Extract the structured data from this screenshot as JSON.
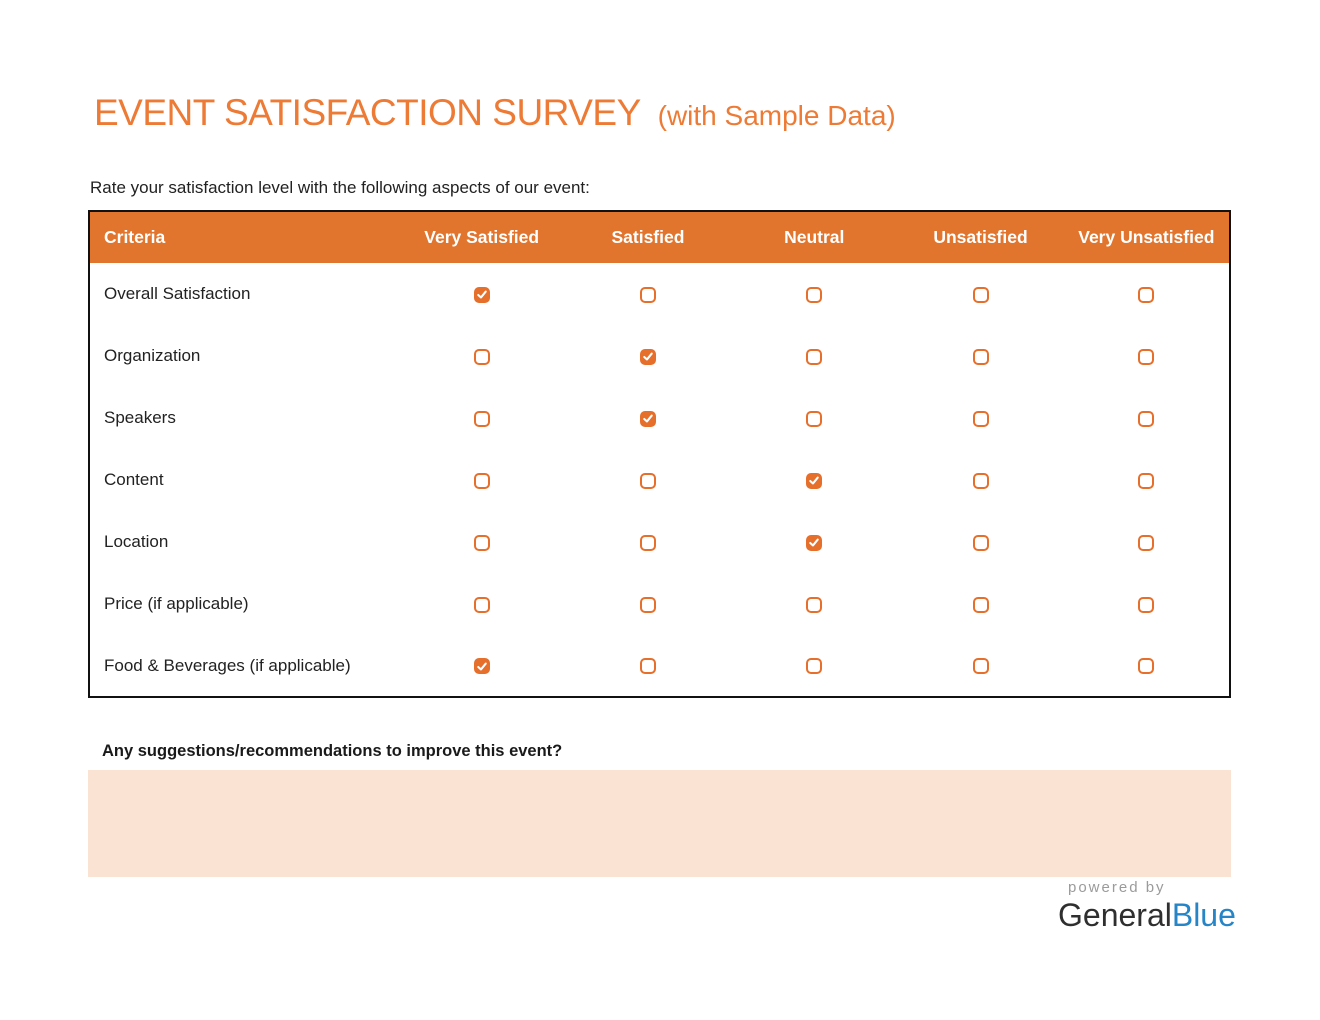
{
  "colors": {
    "accent": "#ED7B35",
    "table-header-bg": "#E2752E",
    "checkbox": "#E56F2B",
    "table-border": "#111111",
    "input-bg": "#FBE3D4",
    "brand-blue": "#2585C7",
    "muted": "#9b9b9b",
    "text": "#222222"
  },
  "header": {
    "title": "EVENT SATISFACTION SURVEY",
    "title_suffix": "(with Sample Data)"
  },
  "intro": "Rate your satisfaction level with the following aspects of our event:",
  "table": {
    "columns": [
      "Criteria",
      "Very Satisfied",
      "Satisfied",
      "Neutral",
      "Unsatisfied",
      "Very Unsatisfied"
    ],
    "rows": [
      {
        "label": "Overall Satisfaction",
        "ratings": [
          true,
          false,
          false,
          false,
          false
        ]
      },
      {
        "label": "Organization",
        "ratings": [
          false,
          true,
          false,
          false,
          false
        ]
      },
      {
        "label": "Speakers",
        "ratings": [
          false,
          true,
          false,
          false,
          false
        ]
      },
      {
        "label": "Content",
        "ratings": [
          false,
          false,
          true,
          false,
          false
        ]
      },
      {
        "label": "Location",
        "ratings": [
          false,
          false,
          true,
          false,
          false
        ]
      },
      {
        "label": "Price (if applicable)",
        "ratings": [
          false,
          false,
          false,
          false,
          false
        ]
      },
      {
        "label": "Food & Beverages (if applicable)",
        "ratings": [
          true,
          false,
          false,
          false,
          false
        ]
      }
    ]
  },
  "suggestions": {
    "label": "Any suggestions/recommendations to improve this event?",
    "value": ""
  },
  "footer": {
    "powered_by": "powered by",
    "brand_general": "General",
    "brand_blue": "Blue"
  }
}
